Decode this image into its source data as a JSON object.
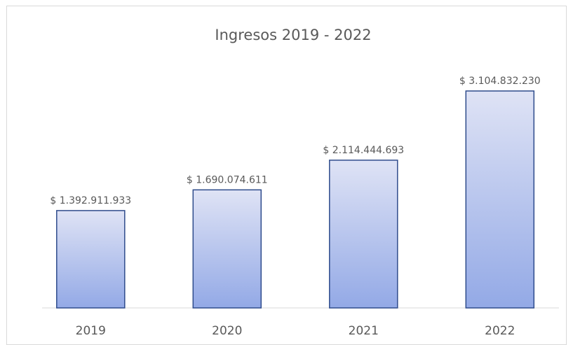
{
  "chart_data": {
    "type": "bar",
    "title": "Ingresos  2019 - 2022",
    "xlabel": "",
    "ylabel": "",
    "categories": [
      "2019",
      "2020",
      "2021",
      "2022"
    ],
    "values": [
      1392911933,
      1690074611,
      2114444693,
      3104832230
    ],
    "data_labels": [
      "$ 1.392.911.933",
      "$ 1.690.074.611",
      "$ 2.114.444.693",
      "$ 3.104.832.230"
    ],
    "ylim": [
      0,
      3500000000
    ],
    "grid": false,
    "legend": "none",
    "colors": {
      "bar_gradient_top": "#dfe3f5",
      "bar_gradient_bottom": "#93a9e6",
      "bar_border": "#2f4c8c",
      "axis_line": "#d9d9d9",
      "text": "#595959",
      "frame_border": "#d9d9d9"
    }
  }
}
